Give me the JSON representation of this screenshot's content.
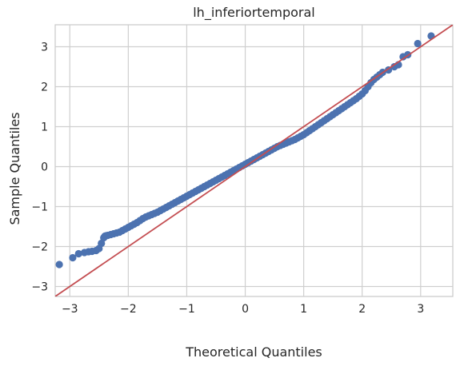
{
  "chart_data": {
    "type": "scatter",
    "title": "lh_inferiortemporal",
    "xlabel": "Theoretical Quantiles",
    "ylabel": "Sample Quantiles",
    "xlim": [
      -3.25,
      3.55
    ],
    "ylim": [
      -3.25,
      3.55
    ],
    "x_ticks": [
      -3,
      -2,
      -1,
      0,
      1,
      2,
      3
    ],
    "y_ticks": [
      -3,
      -2,
      -1,
      0,
      1,
      2,
      3
    ],
    "x_tick_labels": [
      "−3",
      "−2",
      "−1",
      "0",
      "1",
      "2",
      "3"
    ],
    "y_tick_labels": [
      "−3",
      "−2",
      "−1",
      "0",
      "1",
      "2",
      "3"
    ],
    "grid": true,
    "colors": {
      "points": "#4c72b0",
      "reference_line": "#c44e52"
    },
    "reference_line": {
      "slope": 1,
      "intercept": 0
    },
    "series": [
      {
        "x": [
          -3.18,
          -2.95,
          -2.85,
          -2.75,
          -2.68,
          -2.62,
          -2.55,
          -2.5,
          -2.46,
          -2.42,
          -2.4,
          -2.38,
          -2.35,
          -2.3,
          -2.25,
          -2.2,
          -2.15,
          -2.1,
          -2.05,
          -2.0,
          -1.95,
          -1.9,
          -1.85,
          -1.8,
          -1.75,
          -1.7,
          -1.65,
          -1.6,
          -1.55,
          -1.5,
          -1.45,
          -1.4,
          -1.35,
          -1.3,
          -1.25,
          -1.2,
          -1.15,
          -1.1,
          -1.05,
          -1.0,
          -0.95,
          -0.9,
          -0.85,
          -0.8,
          -0.75,
          -0.7,
          -0.65,
          -0.6,
          -0.55,
          -0.5,
          -0.45,
          -0.4,
          -0.35,
          -0.3,
          -0.25,
          -0.2,
          -0.15,
          -0.1,
          -0.05,
          0.0,
          0.05,
          0.1,
          0.15,
          0.2,
          0.25,
          0.3,
          0.35,
          0.4,
          0.45,
          0.5,
          0.55,
          0.6,
          0.65,
          0.7,
          0.75,
          0.8,
          0.85,
          0.9,
          0.95,
          1.0,
          1.05,
          1.1,
          1.15,
          1.2,
          1.25,
          1.3,
          1.35,
          1.4,
          1.45,
          1.5,
          1.55,
          1.6,
          1.65,
          1.7,
          1.75,
          1.8,
          1.85,
          1.9,
          1.95,
          2.0,
          2.05,
          2.1,
          2.15,
          2.2,
          2.25,
          2.3,
          2.35,
          2.45,
          2.55,
          2.62,
          2.7,
          2.78,
          2.95,
          3.18
        ],
        "y": [
          -2.45,
          -2.28,
          -2.18,
          -2.15,
          -2.13,
          -2.12,
          -2.1,
          -2.05,
          -1.92,
          -1.78,
          -1.74,
          -1.73,
          -1.72,
          -1.7,
          -1.68,
          -1.66,
          -1.64,
          -1.6,
          -1.56,
          -1.52,
          -1.48,
          -1.44,
          -1.4,
          -1.35,
          -1.3,
          -1.26,
          -1.23,
          -1.2,
          -1.17,
          -1.14,
          -1.1,
          -1.06,
          -1.02,
          -0.98,
          -0.94,
          -0.9,
          -0.86,
          -0.82,
          -0.78,
          -0.74,
          -0.7,
          -0.66,
          -0.62,
          -0.58,
          -0.54,
          -0.5,
          -0.46,
          -0.42,
          -0.38,
          -0.34,
          -0.3,
          -0.26,
          -0.22,
          -0.18,
          -0.14,
          -0.1,
          -0.06,
          -0.02,
          0.02,
          0.06,
          0.1,
          0.14,
          0.18,
          0.22,
          0.26,
          0.3,
          0.34,
          0.38,
          0.42,
          0.46,
          0.5,
          0.53,
          0.56,
          0.59,
          0.62,
          0.65,
          0.68,
          0.72,
          0.76,
          0.8,
          0.85,
          0.9,
          0.95,
          1.0,
          1.05,
          1.1,
          1.15,
          1.2,
          1.25,
          1.3,
          1.35,
          1.4,
          1.45,
          1.5,
          1.55,
          1.6,
          1.65,
          1.7,
          1.76,
          1.82,
          1.9,
          2.0,
          2.1,
          2.18,
          2.24,
          2.3,
          2.36,
          2.42,
          2.5,
          2.55,
          2.75,
          2.8,
          3.08,
          3.27
        ]
      }
    ]
  }
}
